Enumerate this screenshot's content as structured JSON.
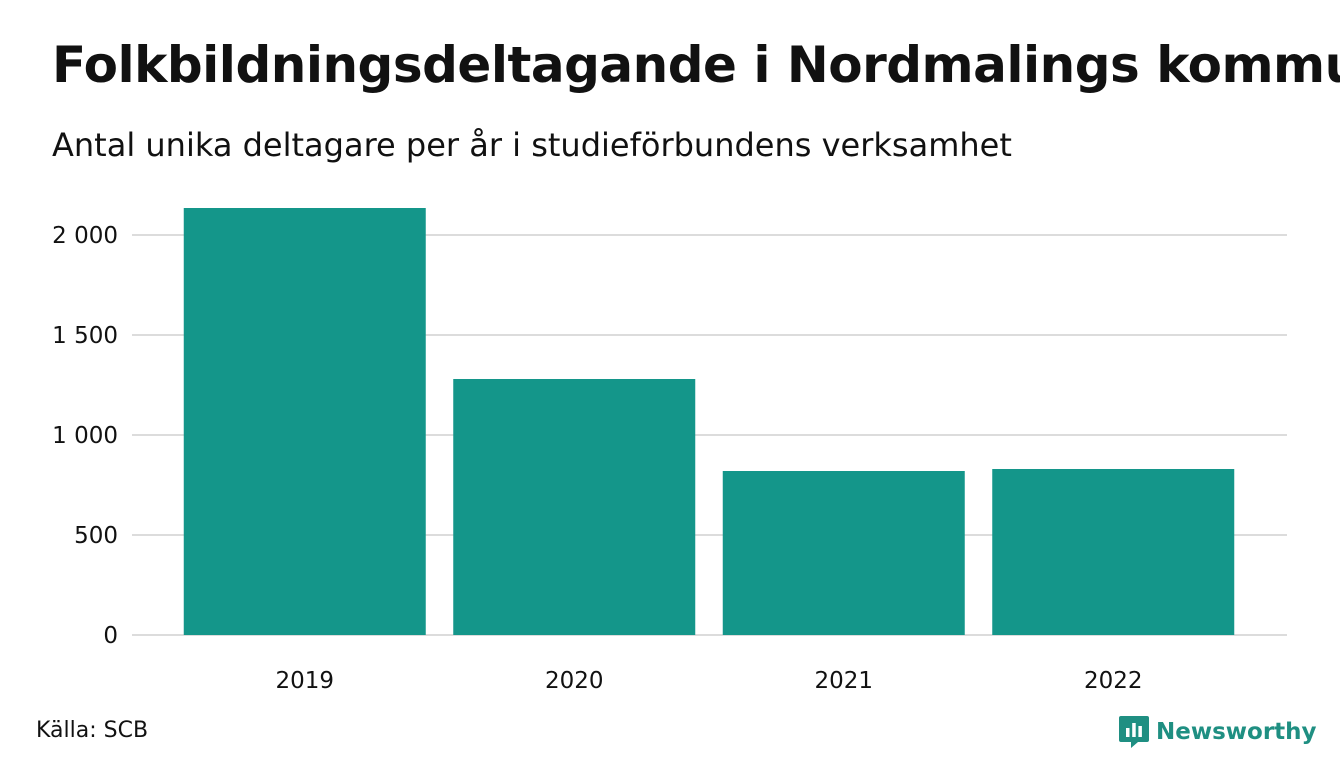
{
  "header": {
    "title": "Folkbildningsdeltagande i Nordmalings kommun",
    "subtitle": "Antal unika deltagare per år i studieförbundens verksamhet"
  },
  "footer": {
    "source": "Källa: SCB",
    "brand": "Newsworthy",
    "brand_icon": "newsworthy-logo-icon"
  },
  "colors": {
    "bar": "#14968a",
    "grid": "#dcdcdc",
    "brand": "#1f8f82"
  },
  "chart_data": {
    "type": "bar",
    "title": "Folkbildningsdeltagande i Nordmalings kommun",
    "subtitle": "Antal unika deltagare per år i studieförbundens verksamhet",
    "categories": [
      "2019",
      "2020",
      "2021",
      "2022"
    ],
    "values": [
      2135,
      1280,
      820,
      830
    ],
    "ylim": [
      0,
      2200
    ],
    "yticks": [
      0,
      500,
      1000,
      1500,
      2000
    ],
    "ytick_labels": [
      "0",
      "500",
      "1 000",
      "1 500",
      "2 000"
    ],
    "grid": true,
    "legend": "none"
  }
}
